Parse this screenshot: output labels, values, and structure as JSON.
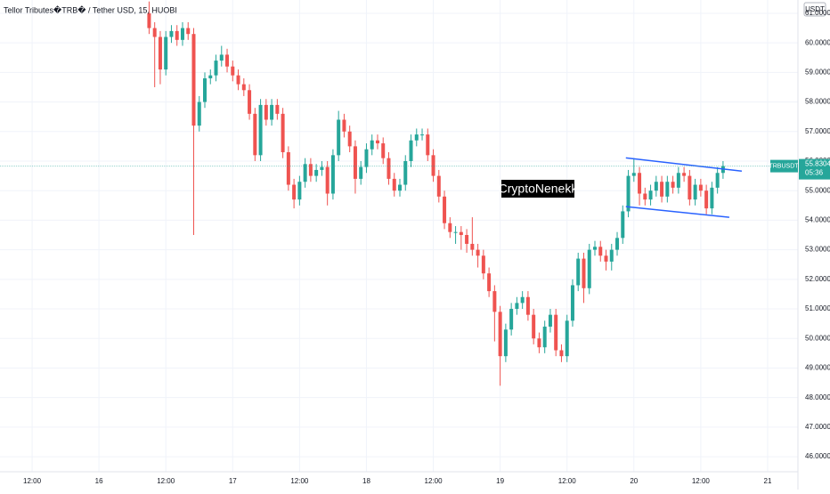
{
  "chart_data": {
    "type": "candlestick",
    "title": "Tellor Tributes�TRB� / Tether USD, 15, HUOBI",
    "currency": "USDT",
    "symbol": "TRBUSDT",
    "last_price": 55.8304,
    "countdown": "05:36",
    "watermark": "CryptoNenekk",
    "up_color": "#26a69a",
    "down_color": "#ef5350",
    "line_color": "#2962ff",
    "grid": true,
    "xlim": [
      6.24,
      149.44
    ],
    "ylim": [
      45.49,
      61.45
    ],
    "xticks": [
      {
        "value": 12,
        "label": "12:00"
      },
      {
        "value": 24,
        "label": "16"
      },
      {
        "value": 36,
        "label": "12:00"
      },
      {
        "value": 48,
        "label": "17"
      },
      {
        "value": 60,
        "label": "12:00"
      },
      {
        "value": 72,
        "label": "18"
      },
      {
        "value": 84,
        "label": "12:00"
      },
      {
        "value": 96,
        "label": "19"
      },
      {
        "value": 108,
        "label": "12:00"
      },
      {
        "value": 120,
        "label": "20"
      },
      {
        "value": 132,
        "label": "12:00"
      },
      {
        "value": 144,
        "label": "21"
      }
    ],
    "yticks": [
      {
        "value": 46,
        "label": "46.0000"
      },
      {
        "value": 47,
        "label": "47.0000"
      },
      {
        "value": 48,
        "label": "48.0000"
      },
      {
        "value": 49,
        "label": "49.0000"
      },
      {
        "value": 50,
        "label": "50.0000"
      },
      {
        "value": 51,
        "label": "51.0000"
      },
      {
        "value": 52,
        "label": "52.0000"
      },
      {
        "value": 53,
        "label": "53.0000"
      },
      {
        "value": 54,
        "label": "54.0000"
      },
      {
        "value": 55,
        "label": "55.0000"
      },
      {
        "value": 56,
        "label": "56.0000"
      },
      {
        "value": 57,
        "label": "57.0000"
      },
      {
        "value": 58,
        "label": "58.0000"
      },
      {
        "value": 59,
        "label": "59.0000"
      },
      {
        "value": 60,
        "label": "60.0000"
      },
      {
        "value": 61,
        "label": "61.0000"
      }
    ],
    "x": [
      33,
      34,
      35,
      36,
      37,
      38,
      39,
      40,
      41,
      42,
      43,
      44,
      45,
      46,
      47,
      48,
      49,
      50,
      51,
      52,
      53,
      54,
      55,
      56,
      57,
      58,
      59,
      60,
      61,
      62,
      63,
      64,
      65,
      66,
      67,
      68,
      69,
      70,
      71,
      72,
      73,
      74,
      75,
      76,
      77,
      78,
      79,
      80,
      81,
      82,
      83,
      84,
      85,
      86,
      87,
      88,
      89,
      90,
      91,
      92,
      93,
      94,
      95,
      96,
      97,
      98,
      99,
      100,
      101,
      102,
      103,
      104,
      105,
      106,
      107,
      108,
      109,
      110,
      111,
      112,
      113,
      114,
      115,
      116,
      117,
      118,
      119,
      120,
      121,
      122,
      123,
      124,
      125,
      126,
      127,
      128,
      129,
      130,
      131,
      132,
      133,
      134,
      135,
      136
    ],
    "open": [
      61.0,
      60.5,
      60.2,
      59.1,
      60.2,
      60.4,
      60.1,
      60.5,
      60.3,
      57.2,
      58.0,
      58.8,
      58.9,
      59.4,
      59.6,
      59.2,
      58.9,
      58.6,
      58.4,
      57.6,
      56.2,
      57.9,
      57.4,
      57.9,
      57.6,
      56.3,
      55.2,
      54.7,
      55.3,
      55.9,
      55.5,
      55.7,
      55.8,
      54.9,
      56.2,
      57.4,
      57.0,
      56.5,
      55.4,
      55.8,
      56.4,
      56.7,
      56.6,
      56.1,
      55.4,
      55.0,
      55.2,
      56.0,
      56.7,
      56.9,
      56.9,
      56.2,
      55.5,
      54.8,
      53.9,
      53.6,
      53.6,
      53.5,
      53.2,
      53.0,
      52.8,
      52.2,
      51.6,
      50.9,
      49.4,
      50.3,
      51.0,
      51.2,
      51.4,
      50.8,
      50.0,
      49.7,
      50.4,
      50.8,
      49.6,
      49.4,
      50.6,
      51.8,
      52.7,
      51.7,
      53.0,
      53.1,
      52.8,
      52.6,
      53.0,
      53.4,
      54.3,
      55.5,
      55.6,
      54.9,
      54.7,
      55.0,
      55.3,
      54.8,
      55.3,
      55.1,
      55.6,
      55.5,
      54.7,
      55.2,
      55.0,
      54.4,
      55.1,
      55.6
    ],
    "high": [
      61.4,
      60.7,
      60.4,
      60.4,
      60.6,
      60.6,
      60.7,
      60.7,
      60.5,
      58.2,
      59.0,
      59.1,
      59.6,
      59.9,
      59.8,
      59.4,
      59.1,
      58.8,
      58.6,
      57.8,
      58.1,
      58.1,
      58.1,
      58.1,
      57.8,
      56.5,
      55.4,
      55.5,
      56.1,
      56.1,
      55.9,
      56.0,
      56.0,
      56.4,
      57.7,
      57.6,
      57.2,
      56.7,
      56.0,
      56.6,
      56.9,
      56.9,
      56.8,
      56.3,
      55.6,
      55.4,
      56.2,
      56.9,
      57.1,
      57.1,
      57.1,
      56.4,
      55.7,
      55.0,
      54.1,
      53.8,
      53.8,
      53.7,
      54.1,
      53.2,
      53.0,
      52.4,
      51.8,
      51.1,
      50.5,
      51.2,
      51.4,
      51.6,
      51.6,
      51.0,
      50.2,
      50.6,
      51.0,
      51.0,
      49.8,
      50.8,
      52.0,
      52.9,
      52.9,
      53.2,
      53.3,
      53.3,
      53.0,
      53.2,
      53.6,
      54.5,
      55.7,
      56.1,
      55.8,
      55.1,
      55.2,
      55.5,
      55.5,
      55.5,
      55.5,
      55.8,
      55.8,
      55.7,
      55.4,
      55.4,
      55.2,
      55.3,
      55.8,
      56.0
    ],
    "low": [
      60.3,
      58.5,
      58.6,
      58.9,
      60.0,
      59.9,
      59.9,
      60.1,
      53.5,
      57.0,
      57.8,
      58.6,
      58.7,
      59.2,
      59.0,
      58.7,
      58.4,
      58.2,
      57.4,
      56.0,
      56.0,
      57.2,
      57.2,
      57.4,
      56.1,
      55.0,
      54.4,
      54.5,
      55.1,
      55.3,
      55.3,
      55.5,
      54.5,
      54.7,
      56.0,
      56.8,
      56.3,
      54.9,
      55.2,
      55.6,
      56.2,
      56.4,
      55.9,
      55.2,
      54.8,
      54.8,
      55.0,
      55.8,
      56.5,
      56.7,
      56.0,
      55.3,
      54.6,
      53.7,
      53.4,
      53.2,
      53.0,
      52.9,
      52.8,
      52.4,
      52.0,
      51.4,
      49.9,
      48.4,
      49.2,
      50.1,
      50.8,
      51.0,
      50.6,
      49.8,
      49.5,
      49.5,
      50.2,
      49.4,
      49.2,
      49.2,
      50.4,
      51.6,
      51.2,
      51.5,
      52.8,
      52.6,
      52.3,
      52.3,
      52.8,
      53.2,
      54.1,
      55.3,
      54.5,
      54.5,
      54.5,
      54.8,
      54.6,
      54.6,
      54.9,
      54.9,
      55.3,
      54.5,
      54.5,
      54.8,
      54.2,
      54.2,
      54.9,
      55.4
    ],
    "close": [
      60.5,
      60.2,
      59.1,
      60.2,
      60.4,
      60.1,
      60.5,
      60.3,
      57.2,
      58.0,
      58.8,
      58.9,
      59.4,
      59.6,
      59.2,
      58.9,
      58.6,
      58.4,
      57.6,
      56.2,
      57.9,
      57.4,
      57.9,
      57.6,
      56.3,
      55.2,
      54.7,
      55.3,
      55.9,
      55.5,
      55.7,
      55.8,
      54.9,
      56.2,
      57.4,
      57.0,
      56.5,
      55.4,
      55.8,
      56.4,
      56.7,
      56.6,
      56.1,
      55.4,
      55.0,
      55.2,
      56.0,
      56.7,
      56.9,
      56.9,
      56.2,
      55.5,
      54.8,
      53.9,
      53.6,
      53.6,
      53.5,
      53.2,
      53.0,
      52.8,
      52.2,
      51.6,
      50.9,
      49.4,
      50.3,
      51.0,
      51.2,
      51.4,
      50.8,
      50.0,
      49.7,
      50.4,
      50.8,
      49.6,
      49.4,
      50.6,
      51.8,
      52.7,
      51.7,
      53.0,
      53.1,
      52.8,
      52.6,
      53.0,
      53.4,
      54.3,
      55.5,
      55.6,
      54.9,
      54.7,
      55.0,
      55.3,
      54.8,
      55.3,
      55.1,
      55.6,
      55.5,
      54.7,
      55.2,
      55.0,
      54.4,
      55.1,
      55.6,
      55.83
    ],
    "trend_lines": [
      {
        "x": [
          118.56,
          139.36
        ],
        "y": [
          56.11,
          55.66
        ]
      },
      {
        "x": [
          118.56,
          137.12
        ],
        "y": [
          54.46,
          54.1
        ]
      }
    ]
  }
}
